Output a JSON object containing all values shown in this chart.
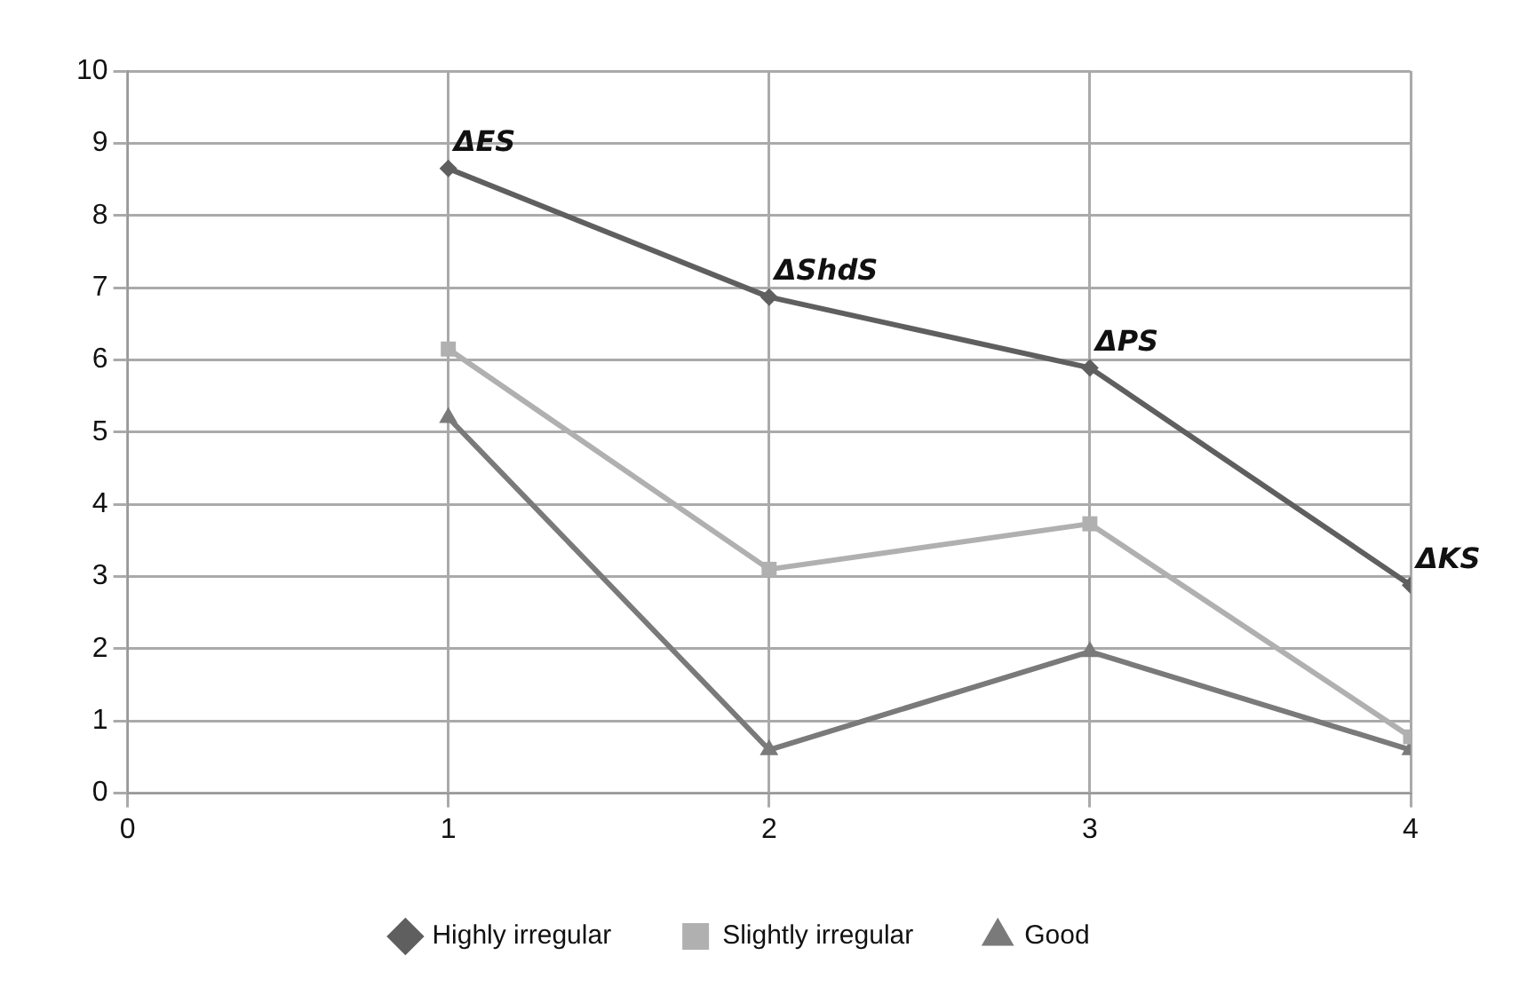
{
  "chart_data": {
    "type": "line",
    "x": [
      1,
      2,
      3,
      4
    ],
    "xlim": [
      0,
      4
    ],
    "xticks": [
      0,
      1,
      2,
      3,
      4
    ],
    "ylim": [
      0,
      10
    ],
    "yticks": [
      0,
      1,
      2,
      3,
      4,
      5,
      6,
      7,
      8,
      9,
      10
    ],
    "grid": true,
    "legend": "bottom",
    "line_style": "solid",
    "series": [
      {
        "name": "Highly irregular",
        "color": "#5f5f5f",
        "marker": "diamond",
        "values": [
          8.65,
          6.87,
          5.89,
          2.88
        ]
      },
      {
        "name": "Slightly irregular",
        "color": "#b0b0b0",
        "marker": "square",
        "values": [
          6.15,
          3.1,
          3.73,
          0.78
        ]
      },
      {
        "name": "Good",
        "color": "#7a7a7a",
        "marker": "triangle",
        "values": [
          5.2,
          0.6,
          1.96,
          0.6
        ]
      }
    ],
    "annotations": [
      {
        "text": "ΔES",
        "x": 1,
        "y": 8.65
      },
      {
        "text": "ΔShdS",
        "x": 2,
        "y": 6.87
      },
      {
        "text": "ΔPS",
        "x": 3,
        "y": 5.89
      },
      {
        "text": "ΔKS",
        "x": 4,
        "y": 2.88
      }
    ]
  }
}
